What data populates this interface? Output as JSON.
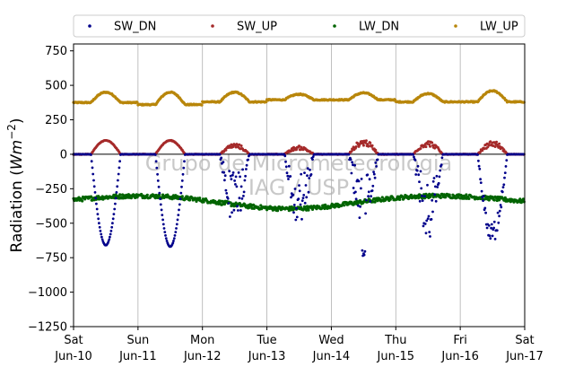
{
  "chart_data": {
    "type": "scatter",
    "title": "",
    "xlabel": "",
    "ylabel": "Radiation (Wm⁻²)",
    "ylabel_parts": {
      "main": "Radiation (",
      "sym": "Wm",
      "sup": "−2",
      "end": ")"
    },
    "ylim": [
      -1250,
      800
    ],
    "yticks": [
      750,
      500,
      250,
      0,
      -250,
      -500,
      -750,
      -1000,
      -1250
    ],
    "ytick_labels": [
      "750",
      "500",
      "250",
      "0",
      "−250",
      "−500",
      "−750",
      "−1000",
      "−1250"
    ],
    "xlim": [
      0,
      7
    ],
    "xticks": [
      {
        "day": "Sat",
        "date": "Jun-10"
      },
      {
        "day": "Sun",
        "date": "Jun-11"
      },
      {
        "day": "Mon",
        "date": "Jun-12"
      },
      {
        "day": "Tue",
        "date": "Jun-13"
      },
      {
        "day": "Wed",
        "date": "Jun-14"
      },
      {
        "day": "Thu",
        "date": "Jun-15"
      },
      {
        "day": "Fri",
        "date": "Jun-16"
      },
      {
        "day": "Sat",
        "date": "Jun-17"
      }
    ],
    "grid": "vertical",
    "zero_line": true,
    "legend_position": "top",
    "watermark": [
      "Grupo de Micrometeorologia",
      "IAG / USP"
    ],
    "series": [
      {
        "name": "SW_DN",
        "color": "#00008b",
        "daily_peaks": [
          -660,
          -670,
          -540,
          -380,
          -740,
          -600,
          -650
        ]
      },
      {
        "name": "SW_UP",
        "color": "#a52a2a",
        "daily_peaks": [
          100,
          100,
          80,
          60,
          110,
          100,
          100
        ]
      },
      {
        "name": "LW_DN",
        "color": "#006400",
        "typical_range": [
          -400,
          -280
        ]
      },
      {
        "name": "LW_UP",
        "color": "#b8860b",
        "typical_range": [
          360,
          470
        ]
      }
    ]
  }
}
